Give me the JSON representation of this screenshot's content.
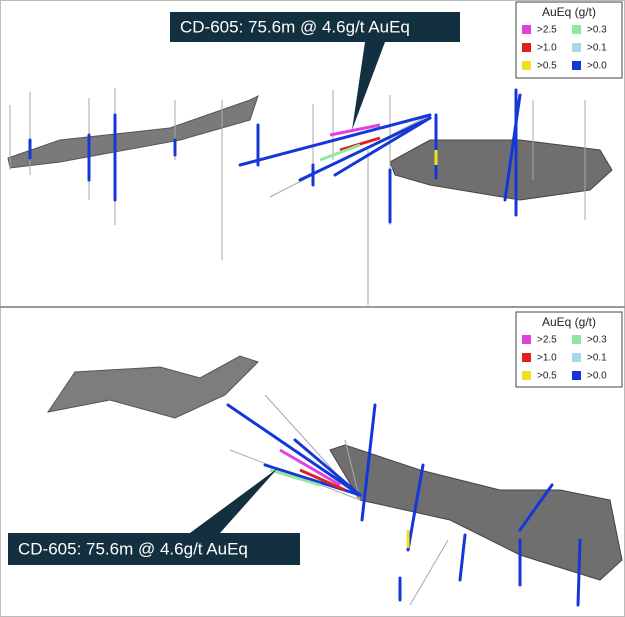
{
  "panels": [
    {
      "callout": "CD-605: 75.6m @ 4.6g/t AuEq",
      "legend": {
        "title": "AuEq (g/t)",
        "items": [
          ">2.5",
          ">0.3",
          ">1.0",
          ">0.1",
          ">0.5",
          ">0.0"
        ]
      }
    },
    {
      "callout": "CD-605: 75.6m @ 4.6g/t AuEq",
      "legend": {
        "title": "AuEq (g/t)",
        "items": [
          ">2.5",
          ">0.3",
          ">1.0",
          ">0.1",
          ">0.5",
          ">0.0"
        ]
      }
    }
  ]
}
